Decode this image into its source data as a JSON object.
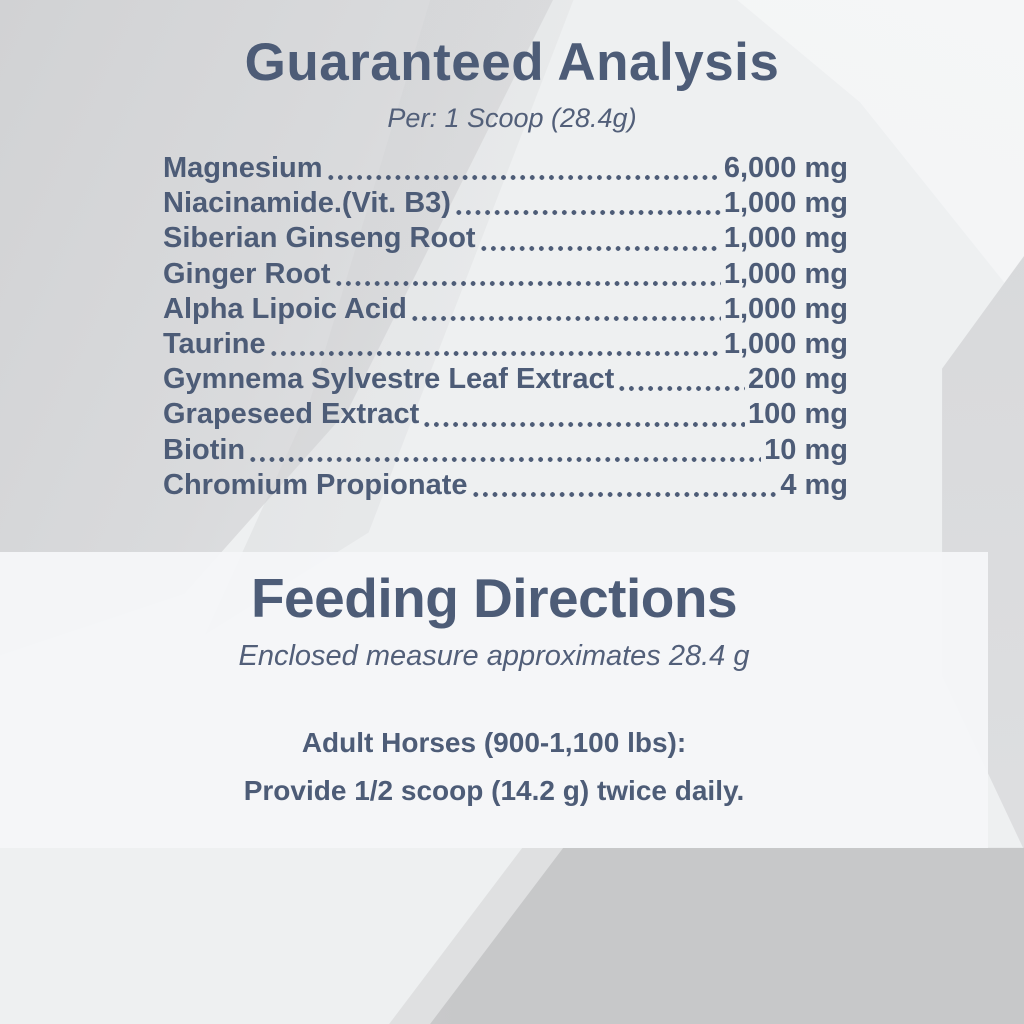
{
  "colors": {
    "text_slate": "#4d5c77",
    "background_light": "#eef0f1",
    "background_dark_band": "#c8c9ca",
    "panel_background": "#f5f6f8"
  },
  "guaranteed_analysis": {
    "title": "Guaranteed Analysis",
    "subtitle": "Per: 1 Scoop (28.4g)",
    "rows": [
      {
        "name": "Magnesium",
        "value": "6,000 mg"
      },
      {
        "name": "Niacinamide.(Vit. B3)",
        "value": "1,000 mg"
      },
      {
        "name": "Siberian Ginseng Root",
        "value": "1,000 mg"
      },
      {
        "name": "Ginger Root",
        "value": "1,000 mg"
      },
      {
        "name": "Alpha Lipoic Acid",
        "value": "1,000 mg"
      },
      {
        "name": "Taurine",
        "value": "1,000 mg"
      },
      {
        "name": "Gymnema Sylvestre Leaf Extract",
        "value": "200 mg"
      },
      {
        "name": "Grapeseed Extract",
        "value": "100 mg"
      },
      {
        "name": "Biotin",
        "value": "10 mg"
      },
      {
        "name": "Chromium Propionate",
        "value": "4 mg"
      }
    ]
  },
  "feeding_directions": {
    "title": "Feeding Directions",
    "subtitle": "Enclosed measure approximates 28.4 g",
    "dosage_heading": "Adult Horses (900-1,100 lbs):",
    "dosage_instruction": "Provide 1/2 scoop (14.2 g) twice daily."
  }
}
